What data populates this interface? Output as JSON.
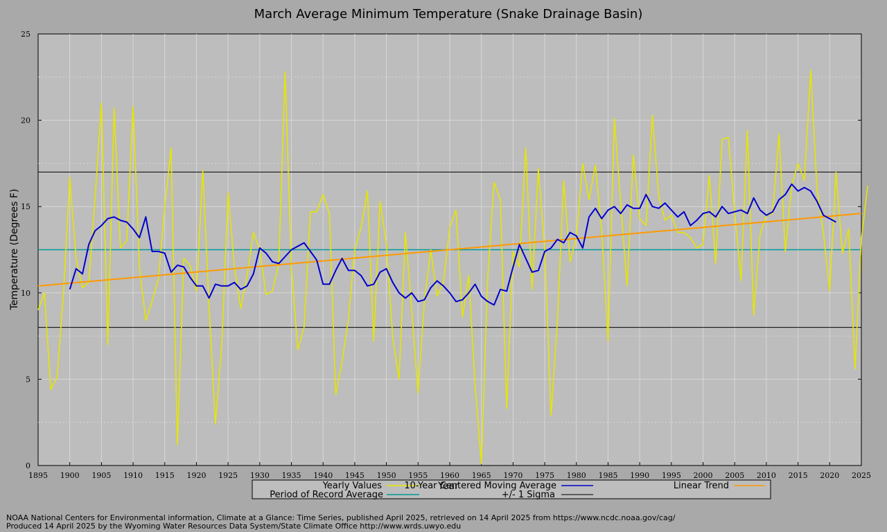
{
  "chart_data": {
    "type": "line",
    "title": "March Average Minimum Temperature (Snake Drainage Basin)",
    "xlabel": "Year",
    "ylabel": "Temperature (Degrees F)",
    "xlim": [
      1895,
      2025
    ],
    "ylim": [
      0,
      25
    ],
    "x_ticks": [
      "1895",
      "1900",
      "1905",
      "1910",
      "1915",
      "1920",
      "1925",
      "1930",
      "1935",
      "1940",
      "1945",
      "1950",
      "1955",
      "1960",
      "1965",
      "1970",
      "1975",
      "1980",
      "1985",
      "1990",
      "1995",
      "2000",
      "2005",
      "2010",
      "2015",
      "2020",
      "2025"
    ],
    "y_ticks": [
      "0",
      "5",
      "10",
      "15",
      "20",
      "25"
    ],
    "grid": true,
    "legend_position": "bottom",
    "series": [
      {
        "name": "Yearly Values",
        "color": "#e6e600",
        "x_start": 1895,
        "values": [
          9.0,
          10.0,
          4.4,
          5.1,
          10.0,
          16.7,
          12.0,
          10.3,
          10.6,
          15.5,
          21.0,
          7.0,
          20.7,
          12.6,
          13.0,
          20.8,
          11.5,
          8.4,
          9.5,
          10.8,
          15.0,
          18.4,
          1.2,
          12.0,
          11.6,
          10.1,
          17.1,
          9.2,
          2.4,
          7.0,
          15.8,
          11.5,
          9.1,
          11.0,
          13.5,
          12.5,
          9.9,
          10.1,
          11.7,
          22.8,
          11.5,
          6.7,
          8.0,
          14.7,
          14.7,
          15.7,
          14.6,
          4.1,
          6.0,
          8.5,
          12.5,
          13.8,
          15.9,
          7.2,
          15.3,
          12.8,
          7.4,
          5.0,
          13.5,
          9.0,
          4.2,
          9.5,
          12.5,
          9.8,
          10.6,
          13.8,
          14.8,
          8.6,
          11.0,
          4.6,
          0.1,
          10.9,
          16.4,
          15.4,
          3.3,
          12.4,
          11.5,
          18.4,
          10.2,
          17.2,
          12.5,
          2.9,
          8.4,
          16.5,
          11.8,
          13.2,
          17.5,
          15.4,
          17.4,
          13.6,
          7.2,
          20.1,
          15.2,
          10.4,
          18.0,
          14.3,
          13.9,
          20.3,
          15.6,
          14.2,
          14.5,
          13.5,
          13.5,
          13.2,
          12.6,
          12.8,
          16.8,
          11.7,
          18.9,
          19.0,
          14.7,
          10.7,
          19.4,
          8.7,
          13.4,
          14.5,
          14.6,
          19.2,
          12.4,
          16.2,
          17.5,
          16.5,
          22.9,
          16.0,
          13.5,
          10.1,
          17.0,
          12.3,
          13.7,
          5.6,
          13.1,
          16.2
        ]
      },
      {
        "name": "10-Year Centered Moving Average",
        "color": "#0000cc",
        "x_start": 1900,
        "values": [
          10.2,
          11.4,
          11.1,
          12.8,
          13.6,
          13.9,
          14.3,
          14.4,
          14.2,
          14.1,
          13.7,
          13.2,
          14.4,
          12.4,
          12.4,
          12.3,
          11.2,
          11.6,
          11.5,
          10.9,
          10.4,
          10.4,
          9.7,
          10.5,
          10.4,
          10.4,
          10.6,
          10.2,
          10.4,
          11.1,
          12.6,
          12.3,
          11.8,
          11.7,
          12.1,
          12.5,
          12.7,
          12.9,
          12.4,
          11.9,
          10.5,
          10.5,
          11.3,
          12.0,
          11.3,
          11.3,
          11.0,
          10.4,
          10.5,
          11.2,
          11.4,
          10.6,
          10.0,
          9.7,
          10.0,
          9.5,
          9.6,
          10.3,
          10.7,
          10.4,
          10.0,
          9.5,
          9.6,
          10.0,
          10.5,
          9.8,
          9.5,
          9.3,
          10.2,
          10.1,
          11.5,
          12.8,
          12.0,
          11.2,
          11.3,
          12.4,
          12.6,
          13.1,
          12.9,
          13.5,
          13.3,
          12.6,
          14.4,
          14.9,
          14.3,
          14.8,
          15.0,
          14.6,
          15.1,
          14.9,
          14.9,
          15.7,
          15.0,
          14.9,
          15.2,
          14.8,
          14.4,
          14.7,
          13.9,
          14.2,
          14.6,
          14.7,
          14.4,
          15.0,
          14.6,
          14.7,
          14.8,
          14.6,
          15.5,
          14.8,
          14.5,
          14.7,
          15.4,
          15.7,
          16.3,
          15.9,
          16.1,
          15.9,
          15.3,
          14.5,
          14.3,
          14.1
        ]
      },
      {
        "name": "Linear Trend",
        "color": "#ff9900",
        "x": [
          1895,
          2025
        ],
        "values": [
          10.4,
          14.6
        ]
      },
      {
        "name": "Period of Record Average",
        "color": "#009999",
        "x": [
          1895,
          2025
        ],
        "values": [
          12.5,
          12.5
        ]
      },
      {
        "name": "+/- 1 Sigma",
        "color": "#000000",
        "upper": 17.0,
        "lower": 8.0
      }
    ]
  },
  "footer": {
    "line1": "NOAA National Centers for Environmental information, Climate at a Glance: Time Series, published April 2025, retrieved on 14 April 2025 from https://www.ncdc.noaa.gov/cag/",
    "line2": "Produced 14 April 2025 by the Wyoming Water Resources Data System/State Climate Office http://www.wrds.uwyo.edu"
  }
}
